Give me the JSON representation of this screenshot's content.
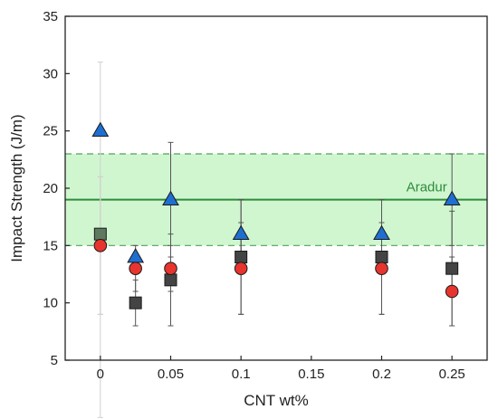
{
  "chart_data": {
    "type": "scatter",
    "xlabel": "CNT wt%",
    "ylabel": "Impact Strength (J/m)",
    "xlim": [
      -0.025,
      0.275
    ],
    "ylim": [
      5,
      35
    ],
    "xticks": [
      0,
      0.05,
      0.1,
      0.15,
      0.2,
      0.25
    ],
    "xtick_labels": [
      "0",
      "0.05",
      "0.1",
      "0.15",
      "0.2",
      "0.25"
    ],
    "yticks": [
      5,
      10,
      15,
      20,
      25,
      30,
      35
    ],
    "ytick_labels": [
      "5",
      "10",
      "15",
      "20",
      "25",
      "30",
      "35"
    ],
    "grid": false,
    "legend": "none",
    "reference": {
      "label": "Aradur",
      "value": 19,
      "band": [
        15,
        23
      ],
      "line_color": "#2e8b3a",
      "band_color": "#c8f5c8"
    },
    "series": [
      {
        "marker": "triangle",
        "color": "#1f6fd1",
        "x": [
          0,
          0.025,
          0.05,
          0.1,
          0.2,
          0.25
        ],
        "y": [
          25,
          14,
          19,
          16,
          16,
          19
        ],
        "err_low": [
          0,
          0,
          24,
          19,
          19,
          23
        ],
        "err_high": [
          31,
          0,
          14,
          13,
          13,
          15
        ]
      },
      {
        "marker": "square",
        "color": "#444444",
        "x": [
          0,
          0.025,
          0.05,
          0.1,
          0.2,
          0.25
        ],
        "y": [
          16,
          10,
          12,
          14,
          14,
          13
        ],
        "err_low": [
          9,
          8,
          8,
          9,
          9,
          8
        ],
        "err_high": [
          21,
          12,
          16,
          19,
          19,
          18
        ]
      },
      {
        "marker": "circle",
        "color": "#e8342e",
        "x": [
          0,
          0.025,
          0.05,
          0.1,
          0.2,
          0.25
        ],
        "y": [
          15,
          13,
          13,
          13,
          13,
          11
        ],
        "err_low": [
          9,
          11,
          11,
          9,
          9,
          8
        ],
        "err_high": [
          21,
          15,
          15,
          17,
          17,
          14
        ]
      }
    ]
  }
}
